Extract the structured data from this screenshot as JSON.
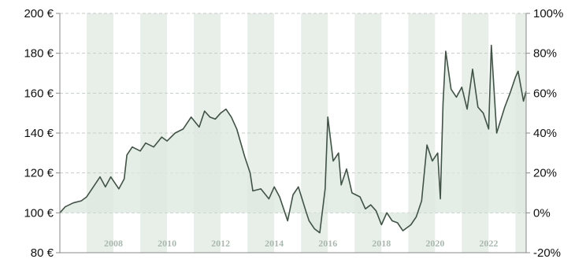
{
  "chart_data": {
    "type": "area",
    "title": "",
    "xlabel": "",
    "ylabel": "",
    "x_range": [
      2006.0,
      2023.4
    ],
    "ylim": [
      80,
      200
    ],
    "y2lim": [
      -20,
      100
    ],
    "y_ticks": [
      "80 €",
      "100 €",
      "120 €",
      "140 €",
      "160 €",
      "180 €",
      "200 €"
    ],
    "y2_ticks": [
      "-20%",
      "0%",
      "20%",
      "40%",
      "60%",
      "80%",
      "100%"
    ],
    "x_tick_labels": [
      "2008",
      "2010",
      "2012",
      "2014",
      "2016",
      "2018",
      "2020",
      "2022"
    ],
    "baseline": 100,
    "grid": true,
    "colors": {
      "line": "#3f5444",
      "fill": "#dde8e0",
      "band": "#e8efe9",
      "grid": "#c4cdc6",
      "axis": "#888888",
      "year_label": "#a9b8ae"
    },
    "series": [
      {
        "x": [
          2006.0,
          2006.2,
          2006.5,
          2006.8,
          2007.0,
          2007.2,
          2007.5,
          2007.7,
          2007.9,
          2008.2,
          2008.4,
          2008.5,
          2008.7,
          2009.0,
          2009.2,
          2009.5,
          2009.8,
          2010.0,
          2010.3,
          2010.6,
          2010.9,
          2011.2,
          2011.4,
          2011.6,
          2011.8,
          2012.0,
          2012.2,
          2012.4,
          2012.6,
          2012.9,
          2013.1,
          2013.2,
          2013.5,
          2013.8,
          2014.0,
          2014.2,
          2014.5,
          2014.7,
          2014.9,
          2015.2,
          2015.3,
          2015.5,
          2015.7,
          2015.9,
          2016.0,
          2016.2,
          2016.4,
          2016.5,
          2016.7,
          2016.9,
          2017.2,
          2017.4,
          2017.6,
          2017.8,
          2018.0,
          2018.2,
          2018.4,
          2018.6,
          2018.8,
          2019.1,
          2019.3,
          2019.5,
          2019.7,
          2019.9,
          2020.1,
          2020.2,
          2020.3,
          2020.4,
          2020.6,
          2020.8,
          2021.0,
          2021.2,
          2021.4,
          2021.6,
          2021.8,
          2022.0,
          2022.1,
          2022.3,
          2022.6,
          2022.8,
          2023.0,
          2023.1,
          2023.3,
          2023.4
        ],
        "values": [
          100,
          103,
          105,
          106,
          108,
          112,
          118,
          113,
          118,
          112,
          117,
          129,
          133,
          131,
          135,
          133,
          138,
          136,
          140,
          142,
          148,
          143,
          151,
          148,
          147,
          150,
          152,
          148,
          142,
          128,
          120,
          111,
          112,
          107,
          113,
          108,
          96,
          109,
          113,
          100,
          96,
          92,
          90,
          112,
          148,
          126,
          130,
          114,
          122,
          110,
          108,
          102,
          104,
          101,
          94,
          100,
          96,
          95,
          91,
          94,
          98,
          106,
          134,
          126,
          130,
          107,
          155,
          181,
          162,
          158,
          163,
          152,
          172,
          153,
          150,
          142,
          184,
          140,
          153,
          160,
          168,
          171,
          156,
          161
        ]
      }
    ]
  }
}
